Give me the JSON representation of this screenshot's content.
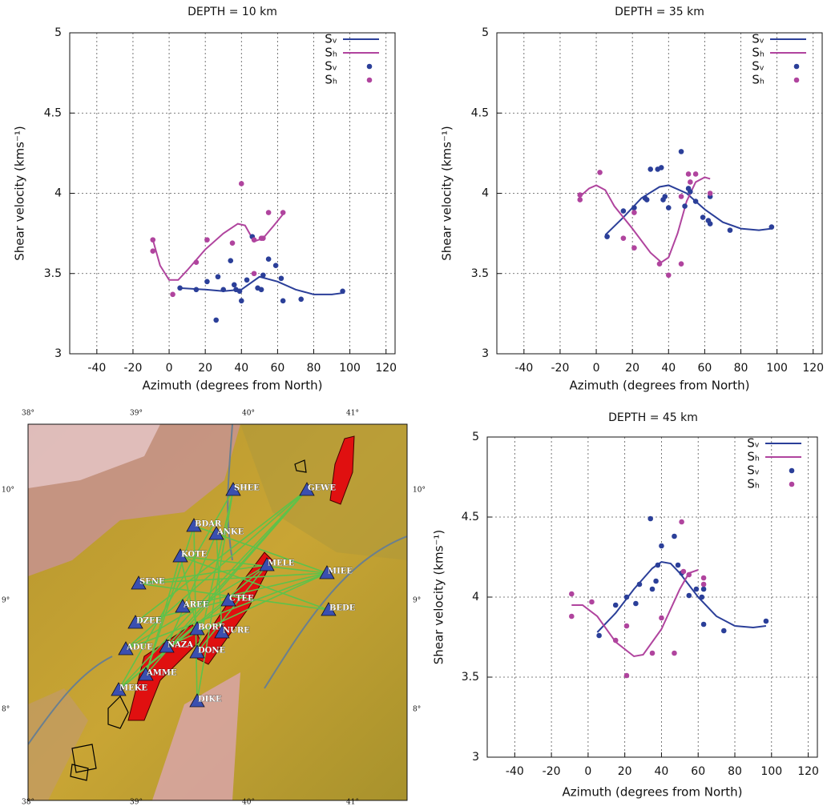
{
  "chart_data": [
    {
      "type": "scatter",
      "title": "DEPTH = 10 km",
      "xlabel": "Azimuth (degrees from North)",
      "ylabel": "Shear velocity (kms⁻¹)",
      "xlim": [
        -55,
        125
      ],
      "ylim": [
        3,
        5
      ],
      "xticks": [
        -40,
        -20,
        0,
        20,
        40,
        60,
        80,
        100,
        120
      ],
      "yticks": [
        3,
        3.5,
        4,
        4.5,
        5
      ],
      "grid": true,
      "legend": "upper right",
      "series": [
        {
          "name": "Sᵥ",
          "color": "#2b3f99",
          "mode": "lines",
          "x": [
            5,
            20,
            30,
            40,
            50,
            60,
            70,
            80,
            90,
            97
          ],
          "values": [
            3.41,
            3.4,
            3.39,
            3.4,
            3.48,
            3.45,
            3.4,
            3.37,
            3.37,
            3.38
          ]
        },
        {
          "name": "Sₕ",
          "color": "#b0449e",
          "mode": "lines",
          "x": [
            -9,
            -5,
            0,
            5,
            10,
            20,
            30,
            38,
            42,
            47,
            52,
            58,
            63
          ],
          "values": [
            3.71,
            3.55,
            3.46,
            3.46,
            3.52,
            3.65,
            3.75,
            3.81,
            3.8,
            3.7,
            3.72,
            3.8,
            3.87
          ]
        },
        {
          "name": "Sᵥ",
          "color": "#2b3f99",
          "mode": "markers",
          "x": [
            6,
            15,
            21,
            27,
            26,
            30,
            34,
            36,
            37,
            39,
            40,
            43,
            46,
            49,
            51,
            52,
            55,
            59,
            62,
            63,
            73,
            96
          ],
          "values": [
            3.41,
            3.4,
            3.45,
            3.48,
            3.21,
            3.4,
            3.58,
            3.43,
            3.4,
            3.39,
            3.33,
            3.46,
            3.73,
            3.41,
            3.4,
            3.49,
            3.59,
            3.55,
            3.47,
            3.33,
            3.34,
            3.39
          ]
        },
        {
          "name": "Sₕ",
          "color": "#b0449e",
          "mode": "markers",
          "x": [
            -9,
            -9,
            2,
            15,
            21,
            35,
            40,
            47,
            47,
            51,
            52,
            55,
            63
          ],
          "values": [
            3.71,
            3.64,
            3.37,
            3.57,
            3.71,
            3.69,
            4.06,
            3.71,
            3.5,
            3.72,
            3.72,
            3.88,
            3.88
          ]
        }
      ]
    },
    {
      "type": "scatter",
      "title": "DEPTH = 35 km",
      "xlabel": "Azimuth (degrees from North)",
      "ylabel": "Shear velocity (kms⁻¹)",
      "xlim": [
        -55,
        125
      ],
      "ylim": [
        3,
        5
      ],
      "xticks": [
        -40,
        -20,
        0,
        20,
        40,
        60,
        80,
        100,
        120
      ],
      "yticks": [
        3,
        3.5,
        4,
        4.5,
        5
      ],
      "grid": true,
      "legend": "upper right",
      "series": [
        {
          "name": "Sᵥ",
          "color": "#2b3f99",
          "mode": "lines",
          "x": [
            5,
            15,
            25,
            35,
            40,
            50,
            60,
            70,
            80,
            90,
            97
          ],
          "values": [
            3.74,
            3.85,
            3.97,
            4.04,
            4.05,
            4.0,
            3.9,
            3.82,
            3.78,
            3.77,
            3.78
          ]
        },
        {
          "name": "Sₕ",
          "color": "#b0449e",
          "mode": "lines",
          "x": [
            -9,
            -4,
            0,
            5,
            10,
            20,
            30,
            36,
            40,
            45,
            50,
            55,
            60,
            63
          ],
          "values": [
            3.98,
            4.03,
            4.05,
            4.02,
            3.92,
            3.78,
            3.63,
            3.57,
            3.6,
            3.75,
            3.95,
            4.07,
            4.1,
            4.09
          ]
        },
        {
          "name": "Sᵥ",
          "color": "#2b3f99",
          "mode": "markers",
          "x": [
            6,
            15,
            21,
            27,
            28,
            30,
            34,
            36,
            37,
            38,
            40,
            47,
            49,
            51,
            52,
            55,
            59,
            62,
            63,
            63,
            74,
            97
          ],
          "values": [
            3.73,
            3.89,
            3.91,
            3.97,
            3.96,
            4.15,
            4.15,
            4.16,
            3.96,
            3.98,
            3.91,
            4.26,
            3.92,
            4.03,
            4.01,
            3.95,
            3.85,
            3.83,
            3.81,
            3.98,
            3.77,
            3.79
          ]
        },
        {
          "name": "Sₕ",
          "color": "#b0449e",
          "mode": "markers",
          "x": [
            -9,
            -9,
            2,
            15,
            21,
            21,
            35,
            40,
            47,
            47,
            51,
            52,
            55,
            63
          ],
          "values": [
            3.99,
            3.96,
            4.13,
            3.72,
            3.88,
            3.66,
            3.56,
            3.49,
            3.98,
            3.56,
            4.12,
            4.07,
            4.12,
            4.0
          ]
        }
      ]
    },
    {
      "type": "scatter",
      "title": "DEPTH = 45 km",
      "xlabel": "Azimuth (degrees from North)",
      "ylabel": "Shear velocity (kms⁻¹)",
      "xlim": [
        -55,
        125
      ],
      "ylim": [
        3,
        5
      ],
      "xticks": [
        -40,
        -20,
        0,
        20,
        40,
        60,
        80,
        100,
        120
      ],
      "yticks": [
        3,
        3.5,
        4,
        4.5,
        5
      ],
      "grid": true,
      "legend": "upper right",
      "series": [
        {
          "name": "Sᵥ",
          "color": "#2b3f99",
          "mode": "lines",
          "x": [
            5,
            15,
            25,
            35,
            40,
            45,
            50,
            60,
            70,
            80,
            90,
            97
          ],
          "values": [
            3.78,
            3.9,
            4.05,
            4.18,
            4.22,
            4.21,
            4.15,
            4.0,
            3.88,
            3.82,
            3.81,
            3.82
          ]
        },
        {
          "name": "Sₕ",
          "color": "#b0449e",
          "mode": "lines",
          "x": [
            -9,
            -3,
            5,
            15,
            25,
            30,
            40,
            50,
            55,
            60
          ],
          "values": [
            3.95,
            3.95,
            3.88,
            3.72,
            3.63,
            3.64,
            3.8,
            4.05,
            4.15,
            4.17
          ]
        },
        {
          "name": "Sᵥ",
          "color": "#2b3f99",
          "mode": "markers",
          "x": [
            6,
            15,
            21,
            26,
            28,
            34,
            35,
            37,
            38,
            40,
            47,
            49,
            51,
            55,
            59,
            62,
            63,
            63,
            74,
            97
          ],
          "values": [
            3.76,
            3.95,
            4.0,
            3.96,
            4.08,
            4.49,
            4.05,
            4.1,
            4.2,
            4.32,
            4.38,
            4.2,
            4.15,
            4.01,
            4.05,
            4.0,
            3.83,
            4.05,
            3.79,
            3.85
          ]
        },
        {
          "name": "Sₕ",
          "color": "#b0449e",
          "mode": "markers",
          "x": [
            -9,
            -9,
            2,
            15,
            21,
            21,
            35,
            40,
            47,
            51,
            52,
            55,
            63,
            63
          ],
          "values": [
            4.02,
            3.88,
            3.97,
            3.73,
            3.82,
            3.51,
            3.65,
            3.87,
            3.65,
            4.47,
            4.16,
            4.14,
            4.12,
            4.08
          ]
        }
      ]
    }
  ],
  "map": {
    "top_ticks": [
      "38°",
      "39°",
      "40°",
      "41°"
    ],
    "bottom_ticks": [
      "38°",
      "39°",
      "40°",
      "41°"
    ],
    "left_ticks": [
      "10°",
      "9°",
      "8°"
    ],
    "right_ticks": [
      "10°",
      "9°",
      "8°"
    ],
    "stations": [
      "SHEE",
      "GEWE",
      "BDAR",
      "ANKE",
      "KOTE",
      "MELE",
      "MIEE",
      "SENE",
      "AREE",
      "CTEE",
      "BEDE",
      "DZEE",
      "BORE",
      "NURE",
      "ADUE",
      "NAZA",
      "DONE",
      "AMME",
      "MEKE",
      "DIKE"
    ]
  }
}
